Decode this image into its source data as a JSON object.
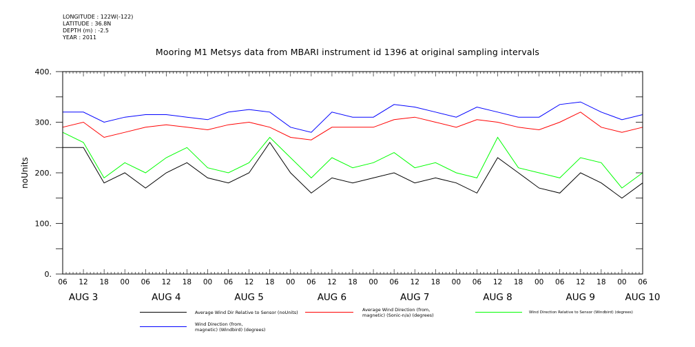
{
  "header": {
    "longitude": "LONGITUDE : 122W(-122)",
    "latitude": "LATITUDE : 36.8N",
    "depth": "DEPTH (m) : -2.5",
    "year": "YEAR : 2011"
  },
  "chart_data": {
    "type": "line",
    "title": "Mooring M1 Metsys data from MBARI instrument id 1396 at original sampling intervals",
    "xlabel": "",
    "ylabel": "noUnits",
    "ylim": [
      0,
      400
    ],
    "yticks": [
      0,
      100,
      200,
      300,
      400
    ],
    "ytick_labels": [
      "0.",
      "100.",
      "200.",
      "300.",
      "400."
    ],
    "xlim": [
      "2011-08-03T06:00",
      "2011-08-10T06:00"
    ],
    "x_hour_ticks": [
      "06",
      "12",
      "18",
      "00",
      "06",
      "12",
      "18",
      "00",
      "06",
      "12",
      "18",
      "00",
      "06",
      "12",
      "18",
      "00",
      "06",
      "12",
      "18",
      "00",
      "06",
      "12",
      "18",
      "00",
      "06",
      "12",
      "18",
      "00",
      "06"
    ],
    "x_date_labels": [
      {
        "label": "AUG  3",
        "x": "2011-08-03T12:00"
      },
      {
        "label": "AUG  4",
        "x": "2011-08-04T12:00"
      },
      {
        "label": "AUG  5",
        "x": "2011-08-05T12:00"
      },
      {
        "label": "AUG  6",
        "x": "2011-08-06T12:00"
      },
      {
        "label": "AUG  7",
        "x": "2011-08-07T12:00"
      },
      {
        "label": "AUG  8",
        "x": "2011-08-08T12:00"
      },
      {
        "label": "AUG  9",
        "x": "2011-08-09T12:00"
      },
      {
        "label": "AUG 10",
        "x": "2011-08-10T06:00"
      }
    ],
    "x": [
      "2011-08-03T06:00",
      "2011-08-03T12:00",
      "2011-08-03T18:00",
      "2011-08-04T00:00",
      "2011-08-04T06:00",
      "2011-08-04T12:00",
      "2011-08-04T18:00",
      "2011-08-05T00:00",
      "2011-08-05T06:00",
      "2011-08-05T12:00",
      "2011-08-05T18:00",
      "2011-08-06T00:00",
      "2011-08-06T06:00",
      "2011-08-06T12:00",
      "2011-08-06T18:00",
      "2011-08-07T00:00",
      "2011-08-07T06:00",
      "2011-08-07T12:00",
      "2011-08-07T18:00",
      "2011-08-08T00:00",
      "2011-08-08T06:00",
      "2011-08-08T12:00",
      "2011-08-08T18:00",
      "2011-08-09T00:00",
      "2011-08-09T06:00",
      "2011-08-09T12:00",
      "2011-08-09T18:00",
      "2011-08-10T00:00",
      "2011-08-10T06:00"
    ],
    "series": [
      {
        "name": "Average Wind Dir Relative to Sensor (noUnits)",
        "color": "#000000",
        "values": [
          250,
          250,
          180,
          200,
          170,
          200,
          220,
          190,
          180,
          200,
          260,
          200,
          160,
          190,
          180,
          190,
          200,
          180,
          190,
          180,
          160,
          230,
          200,
          170,
          160,
          200,
          180,
          150,
          180
        ]
      },
      {
        "name": "Average Wind Direction (from, magnetic) (Sonic-n/a) (degrees)",
        "color": "#ff0000",
        "values": [
          290,
          300,
          270,
          280,
          290,
          295,
          290,
          285,
          295,
          300,
          290,
          270,
          265,
          290,
          290,
          290,
          305,
          310,
          300,
          290,
          305,
          300,
          290,
          285,
          300,
          320,
          290,
          280,
          290
        ]
      },
      {
        "name": "Wind Direction Relative to Sensor (Windbird) (degrees)",
        "color": "#00ff00",
        "values": [
          280,
          260,
          190,
          220,
          200,
          230,
          250,
          210,
          200,
          220,
          270,
          230,
          190,
          230,
          210,
          220,
          240,
          210,
          220,
          200,
          190,
          270,
          210,
          200,
          190,
          230,
          220,
          170,
          200
        ]
      },
      {
        "name": "Wind Direction (from, magnetic) (Windbird) (degrees)",
        "color": "#0000ff",
        "values": [
          320,
          320,
          300,
          310,
          315,
          315,
          310,
          305,
          320,
          325,
          320,
          290,
          280,
          320,
          310,
          310,
          335,
          330,
          320,
          310,
          330,
          320,
          310,
          310,
          335,
          340,
          320,
          305,
          315
        ]
      }
    ],
    "grid": false,
    "legend_placement": "bottom"
  },
  "legend": {
    "items": [
      {
        "line1": "Average Wind Dir Relative to Sensor (noUnits)",
        "line2": ""
      },
      {
        "line1": "Average Wind Direction (from,",
        "line2": "magnetic) (Sonic-n/a) (degrees)"
      },
      {
        "line1": "Wind Direction Relative to Sensor (Windbird) (degrees)",
        "line2": ""
      },
      {
        "line1": "Wind Direction (from,",
        "line2": "magnetic) (Windbird) (degrees)"
      }
    ]
  }
}
